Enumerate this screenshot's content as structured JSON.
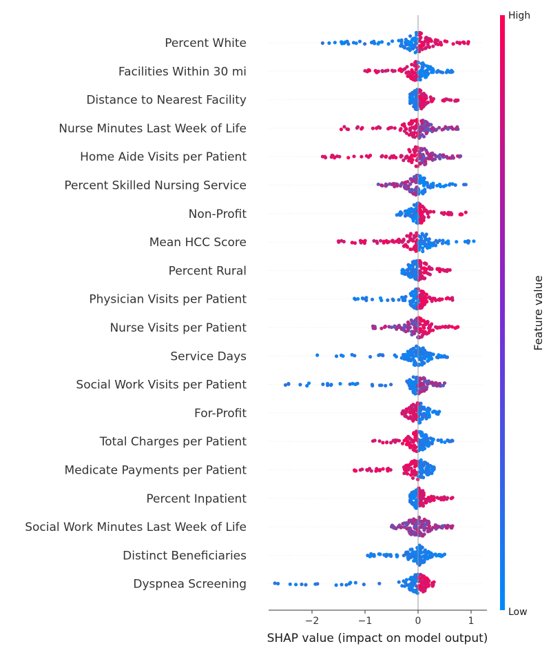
{
  "chart_data": {
    "type": "scatter",
    "subtype": "shap-beeswarm",
    "xlabel": "SHAP value (impact on model output)",
    "xlim": [
      -2.85,
      1.3
    ],
    "xticks": [
      -2,
      -1,
      0,
      1
    ],
    "xtick_labels": [
      "−2",
      "−1",
      "0",
      "1"
    ],
    "zero_line": true,
    "colorbar": {
      "title": "Feature value",
      "high_label": "High",
      "low_label": "Low",
      "low_color": "#008bfb",
      "high_color": "#ff0052"
    },
    "features": [
      {
        "name": "Percent White",
        "min": -1.8,
        "max": 0.95,
        "neg_color": "low",
        "pos_color": "high",
        "spread": 0.55
      },
      {
        "name": "Facilities Within 30 mi",
        "min": -1.0,
        "max": 0.65,
        "neg_color": "high",
        "pos_color": "low",
        "spread": 0.45
      },
      {
        "name": "Distance to Nearest Facility",
        "min": -0.15,
        "max": 0.75,
        "neg_color": "low",
        "pos_color": "high",
        "spread": 0.35
      },
      {
        "name": "Nurse Minutes Last Week of Life",
        "min": -1.45,
        "max": 0.75,
        "neg_color": "high",
        "pos_color": "mix",
        "spread": 0.5
      },
      {
        "name": "Home Aide Visits per Patient",
        "min": -1.8,
        "max": 0.8,
        "neg_color": "high",
        "pos_color": "mix",
        "spread": 0.5
      },
      {
        "name": "Percent Skilled Nursing Service",
        "min": -0.75,
        "max": 0.9,
        "neg_color": "mix",
        "pos_color": "low",
        "spread": 0.4
      },
      {
        "name": "Non-Profit",
        "min": -0.4,
        "max": 0.9,
        "neg_color": "low",
        "pos_color": "high",
        "spread": 0.35
      },
      {
        "name": "Mean HCC Score",
        "min": -1.5,
        "max": 1.05,
        "neg_color": "high",
        "pos_color": "low",
        "spread": 0.55
      },
      {
        "name": "Percent Rural",
        "min": -0.3,
        "max": 0.6,
        "neg_color": "low",
        "pos_color": "high",
        "spread": 0.45
      },
      {
        "name": "Physician Visits per Patient",
        "min": -1.2,
        "max": 0.65,
        "neg_color": "low",
        "pos_color": "high",
        "spread": 0.35
      },
      {
        "name": "Nurse Visits per Patient",
        "min": -0.85,
        "max": 0.75,
        "neg_color": "mix",
        "pos_color": "high",
        "spread": 0.45
      },
      {
        "name": "Service Days",
        "min": -1.9,
        "max": 0.55,
        "neg_color": "low",
        "pos_color": "low",
        "spread": 0.4
      },
      {
        "name": "Social Work Visits per Patient",
        "min": -2.5,
        "max": 0.5,
        "neg_color": "low",
        "pos_color": "mix",
        "spread": 0.35
      },
      {
        "name": "For-Profit",
        "min": -0.3,
        "max": 0.4,
        "neg_color": "high",
        "pos_color": "low",
        "spread": 0.4
      },
      {
        "name": "Total Charges per Patient",
        "min": -0.85,
        "max": 0.65,
        "neg_color": "high",
        "pos_color": "low",
        "spread": 0.4
      },
      {
        "name": "Medicate Payments per Patient",
        "min": -1.2,
        "max": 0.3,
        "neg_color": "high",
        "pos_color": "low",
        "spread": 0.45
      },
      {
        "name": "Percent Inpatient",
        "min": -0.15,
        "max": 0.65,
        "neg_color": "low",
        "pos_color": "high",
        "spread": 0.35
      },
      {
        "name": "Social Work Minutes Last Week of Life",
        "min": -0.5,
        "max": 0.65,
        "neg_color": "mix",
        "pos_color": "mix",
        "spread": 0.45
      },
      {
        "name": "Distinct Beneficiaries",
        "min": -0.95,
        "max": 0.5,
        "neg_color": "low",
        "pos_color": "low",
        "spread": 0.35
      },
      {
        "name": "Dyspnea Screening",
        "min": -2.7,
        "max": 0.3,
        "neg_color": "low",
        "pos_color": "high",
        "spread": 0.4
      }
    ]
  }
}
